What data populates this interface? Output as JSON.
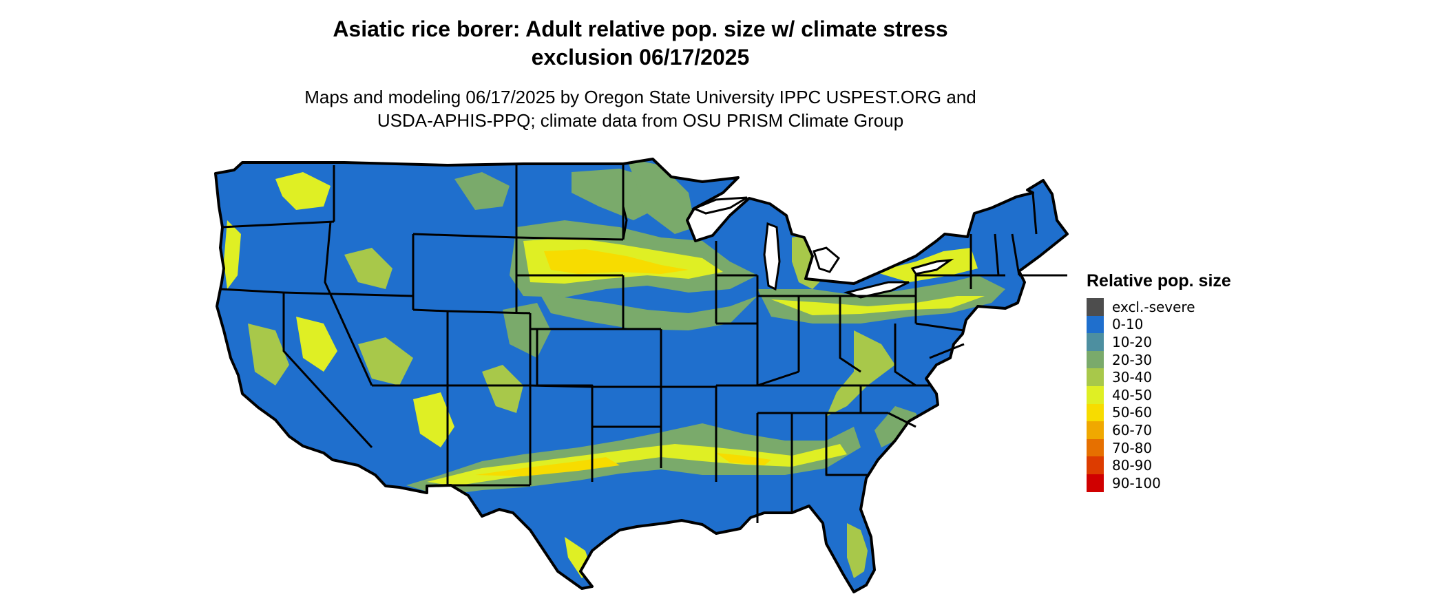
{
  "title_line1": "Asiatic rice borer: Adult relative pop. size w/ climate stress",
  "title_line2": "exclusion 06/17/2025",
  "subtitle_line1": "Maps and modeling 06/17/2025 by Oregon State University IPPC USPEST.ORG and",
  "subtitle_line2": "USDA-APHIS-PPQ; climate data from OSU PRISM Climate Group",
  "legend": {
    "title": "Relative pop. size",
    "items": [
      {
        "label": "excl.-severe",
        "color": "#4d4d4d"
      },
      {
        "label": "0-10",
        "color": "#1f6fcd"
      },
      {
        "label": "10-20",
        "color": "#4d8fa0"
      },
      {
        "label": "20-30",
        "color": "#7aaa6b"
      },
      {
        "label": "30-40",
        "color": "#a8c84a"
      },
      {
        "label": "40-50",
        "color": "#dfef24"
      },
      {
        "label": "50-60",
        "color": "#f7dc00"
      },
      {
        "label": "60-70",
        "color": "#f0a800"
      },
      {
        "label": "70-80",
        "color": "#e67000"
      },
      {
        "label": "80-90",
        "color": "#dd3c00"
      },
      {
        "label": "90-100",
        "color": "#d00000"
      }
    ]
  },
  "map": {
    "base_color": "#1f6fcd",
    "border_color": "#000000"
  }
}
